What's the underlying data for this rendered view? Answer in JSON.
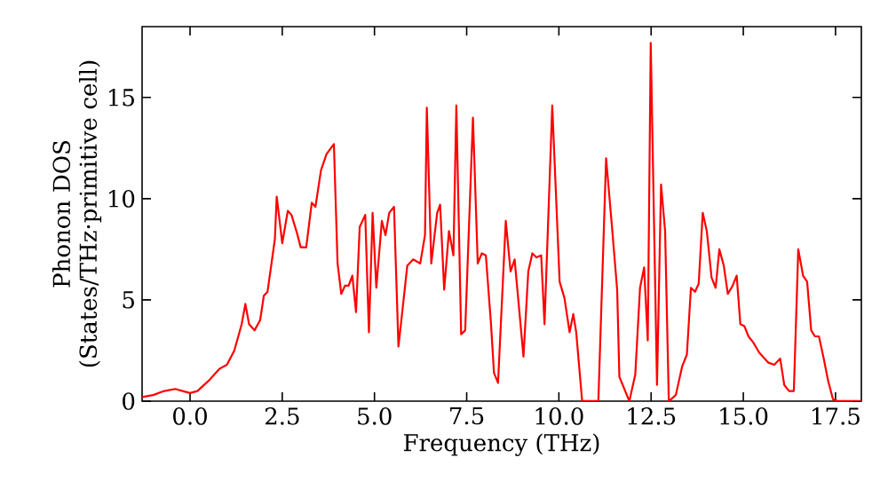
{
  "chart_data": {
    "type": "line",
    "xlabel": "Frequency (THz)",
    "ylabel": "Phonon DOS (States/THz·primitive cell)",
    "xlim": [
      -1.3,
      18.2
    ],
    "ylim": [
      0,
      18.5
    ],
    "xticks": [
      {
        "value": 0,
        "label": "0.0"
      },
      {
        "value": 2.5,
        "label": "2.5"
      },
      {
        "value": 5,
        "label": "5.0"
      },
      {
        "value": 7.5,
        "label": "7.5"
      },
      {
        "value": 10,
        "label": "10.0"
      },
      {
        "value": 12.5,
        "label": "12.5"
      },
      {
        "value": 15,
        "label": "15.0"
      },
      {
        "value": 17.5,
        "label": "17.5"
      }
    ],
    "yticks": [
      0,
      5,
      10,
      15
    ],
    "marker": "none",
    "line_style": "solid",
    "series": [
      {
        "color": "#ff0000",
        "x": [
          -1.3,
          -1.0,
          -0.7,
          -0.4,
          -0.2,
          0.0,
          0.2,
          0.5,
          0.8,
          1.0,
          1.2,
          1.4,
          1.5,
          1.6,
          1.75,
          1.9,
          2.0,
          2.1,
          2.3,
          2.35,
          2.5,
          2.65,
          2.75,
          2.9,
          3.0,
          3.15,
          3.3,
          3.4,
          3.55,
          3.7,
          3.9,
          4.0,
          4.1,
          4.2,
          4.3,
          4.4,
          4.5,
          4.6,
          4.75,
          4.85,
          4.95,
          5.05,
          5.2,
          5.3,
          5.4,
          5.53,
          5.65,
          5.73,
          5.89,
          6.05,
          6.24,
          6.37,
          6.42,
          6.54,
          6.7,
          6.78,
          6.89,
          7.02,
          7.14,
          7.22,
          7.35,
          7.46,
          7.67,
          7.8,
          7.91,
          8.02,
          8.16,
          8.24,
          8.35,
          8.56,
          8.69,
          8.8,
          9.04,
          9.17,
          9.28,
          9.39,
          9.52,
          9.61,
          9.82,
          10.02,
          10.15,
          10.29,
          10.39,
          10.47,
          10.63,
          11.07,
          11.28,
          11.44,
          11.58,
          11.64,
          11.91,
          12.07,
          12.2,
          12.31,
          12.41,
          12.49,
          12.66,
          12.77,
          12.88,
          12.98,
          13.17,
          13.34,
          13.47,
          13.58,
          13.69,
          13.79,
          13.9,
          14.01,
          14.14,
          14.25,
          14.35,
          14.47,
          14.58,
          14.71,
          14.82,
          14.92,
          15.03,
          15.14,
          15.27,
          15.43,
          15.68,
          15.84,
          16.0,
          16.11,
          16.24,
          16.37,
          16.49,
          16.62,
          16.73,
          16.84,
          16.94,
          17.05,
          17.18,
          17.3,
          17.43,
          17.55,
          18.2
        ],
        "values": [
          0.2,
          0.3,
          0.5,
          0.6,
          0.5,
          0.4,
          0.5,
          1.0,
          1.6,
          1.8,
          2.5,
          3.8,
          4.8,
          3.8,
          3.5,
          4.0,
          5.2,
          5.4,
          8.0,
          10.1,
          7.8,
          9.4,
          9.2,
          8.3,
          7.6,
          7.6,
          9.8,
          9.6,
          11.4,
          12.2,
          12.7,
          6.8,
          5.3,
          5.7,
          5.7,
          6.2,
          4.4,
          8.6,
          9.2,
          3.4,
          9.3,
          5.6,
          8.9,
          8.2,
          9.3,
          9.6,
          2.7,
          4.0,
          6.7,
          7.0,
          6.8,
          8.2,
          14.5,
          6.8,
          9.3,
          9.7,
          5.5,
          8.4,
          7.2,
          14.6,
          3.3,
          3.5,
          14.0,
          6.8,
          7.3,
          7.2,
          3.8,
          1.4,
          0.9,
          8.9,
          6.4,
          7.0,
          2.2,
          6.4,
          7.3,
          7.1,
          7.2,
          3.8,
          14.6,
          5.9,
          5.1,
          3.4,
          4.3,
          3.4,
          0,
          0,
          12.0,
          8.6,
          5.5,
          1.2,
          0,
          1.3,
          5.6,
          6.6,
          3.0,
          17.7,
          0.8,
          10.7,
          8.4,
          0,
          0.3,
          1.7,
          2.3,
          5.6,
          5.4,
          5.8,
          9.3,
          8.4,
          6.1,
          5.6,
          7.5,
          6.7,
          5.3,
          5.7,
          6.2,
          3.8,
          3.7,
          3.2,
          2.9,
          2.4,
          1.9,
          1.8,
          2.1,
          0.8,
          0.5,
          0.5,
          7.5,
          6.2,
          5.9,
          3.5,
          3.2,
          3.2,
          2.1,
          1.0,
          0.1,
          0,
          0
        ]
      }
    ]
  }
}
